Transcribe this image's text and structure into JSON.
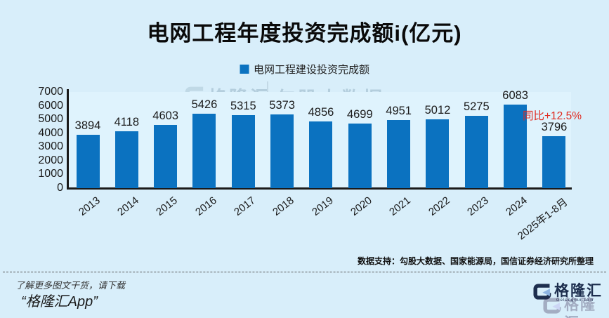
{
  "page": {
    "background": "#d8eefa"
  },
  "header": {
    "title": "电网工程年度投资完成额i(亿元)"
  },
  "legend": {
    "label": "电网工程建设投资完成额",
    "swatch_color": "#0b72c0"
  },
  "watermark": {
    "brand": "格隆汇",
    "brand_url": "www.gelonghui.com",
    "partner": "勾股大数据",
    "partner_url": "www.gogudata.com"
  },
  "annotation": {
    "text": "同比+12.5%",
    "color": "#e02a20",
    "target": "2025年1-8月"
  },
  "source": {
    "text": "数据支持：勾股大数据、国家能源局，国信证券经济研究所整理"
  },
  "footer": {
    "promo_line1": "了解更多图文干货，请下载",
    "promo_line2": "“格隆汇App”",
    "brand": "格隆汇",
    "brand_url": "Gelonghui.com"
  },
  "chart_data": {
    "type": "bar",
    "title": "电网工程年度投资完成额i(亿元)",
    "legend_entries": [
      "电网工程建设投资完成额"
    ],
    "legend_position": "top",
    "grid": false,
    "categories": [
      "2013",
      "2014",
      "2015",
      "2016",
      "2017",
      "2018",
      "2019",
      "2020",
      "2021",
      "2022",
      "2023",
      "2024",
      "2025年1-8月"
    ],
    "values": [
      3894,
      4118,
      4603,
      5426,
      5315,
      5373,
      4856,
      4699,
      4951,
      5012,
      5275,
      6083,
      3796
    ],
    "xlabel": "",
    "ylabel": "",
    "ylim": [
      0,
      7000
    ],
    "yticks": [
      0,
      1000,
      2000,
      3000,
      4000,
      5000,
      6000,
      7000
    ],
    "bar_color": "#0b72c0",
    "annotations": [
      {
        "text": "同比+12.5%",
        "color": "#e02a20",
        "category": "2025年1-8月"
      }
    ]
  }
}
